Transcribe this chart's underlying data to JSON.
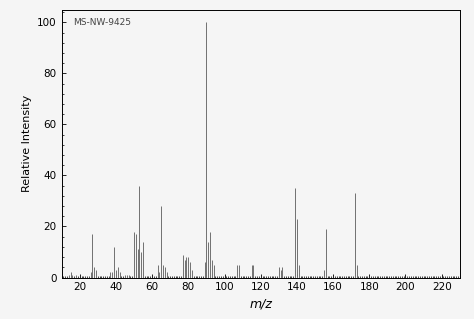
{
  "peaks": [
    [
      14,
      1
    ],
    [
      15,
      2
    ],
    [
      16,
      1
    ],
    [
      18,
      1
    ],
    [
      26,
      2
    ],
    [
      27,
      17
    ],
    [
      28,
      4
    ],
    [
      29,
      3
    ],
    [
      37,
      2
    ],
    [
      38,
      2
    ],
    [
      39,
      12
    ],
    [
      40,
      3
    ],
    [
      41,
      4
    ],
    [
      42,
      2
    ],
    [
      45,
      1
    ],
    [
      46,
      1
    ],
    [
      47,
      1
    ],
    [
      50,
      18
    ],
    [
      51,
      17
    ],
    [
      52,
      11
    ],
    [
      53,
      36
    ],
    [
      54,
      10
    ],
    [
      55,
      14
    ],
    [
      63,
      5
    ],
    [
      64,
      2
    ],
    [
      65,
      28
    ],
    [
      66,
      5
    ],
    [
      67,
      4
    ],
    [
      68,
      2
    ],
    [
      77,
      9
    ],
    [
      78,
      7
    ],
    [
      79,
      8
    ],
    [
      80,
      8
    ],
    [
      81,
      6
    ],
    [
      82,
      3
    ],
    [
      89,
      6
    ],
    [
      90,
      100
    ],
    [
      91,
      14
    ],
    [
      92,
      18
    ],
    [
      93,
      7
    ],
    [
      94,
      5
    ],
    [
      107,
      5
    ],
    [
      108,
      5
    ],
    [
      115,
      5
    ],
    [
      116,
      5
    ],
    [
      130,
      4
    ],
    [
      131,
      3
    ],
    [
      132,
      4
    ],
    [
      139,
      35
    ],
    [
      140,
      23
    ],
    [
      141,
      5
    ],
    [
      155,
      3
    ],
    [
      156,
      19
    ],
    [
      172,
      33
    ],
    [
      173,
      5
    ]
  ],
  "xlabel": "m/z",
  "ylabel": "Relative Intensity",
  "xlim": [
    10,
    230
  ],
  "ylim": [
    0,
    105
  ],
  "xticks": [
    20,
    40,
    60,
    80,
    100,
    120,
    140,
    160,
    180,
    200,
    220
  ],
  "yticks": [
    0,
    20,
    40,
    60,
    80,
    100
  ],
  "annotation": "MS-NW-9425",
  "bar_color": "#707070",
  "bg_color": "#f5f5f5",
  "linewidth": 0.7
}
